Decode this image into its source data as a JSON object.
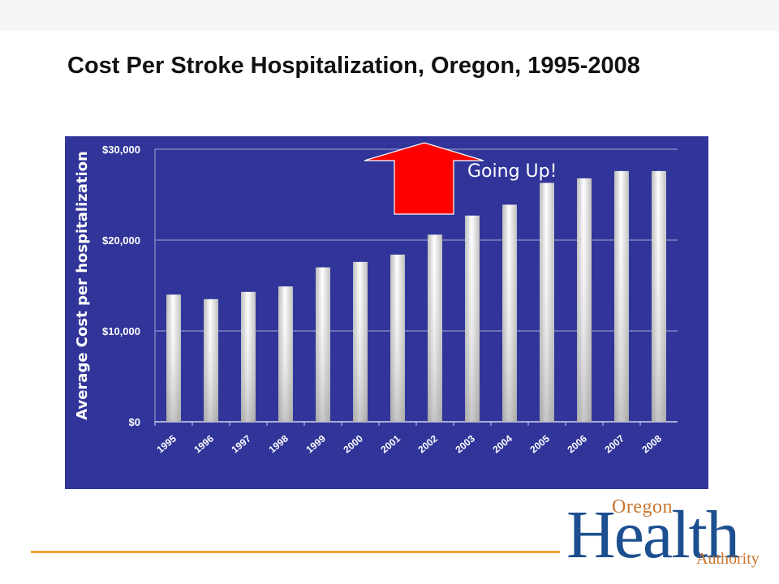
{
  "slide": {
    "title": "Cost Per Stroke Hospitalization, Oregon, 1995-2008"
  },
  "colors": {
    "panel": "#31359a",
    "gridline": "#8e92c8",
    "bar_light": "#ffffff",
    "bar_shade": "#bdbdbd",
    "arrow": "#ff0000",
    "annotation_text": "#ffffff",
    "footer_line": "#f0a23a",
    "logo_blue": "#1c4f8f",
    "logo_orange": "#c8742e"
  },
  "logo": {
    "line1": "Oregon",
    "line2": "Health",
    "line3": "Authority"
  },
  "chart_data": {
    "type": "bar",
    "title": "",
    "xlabel": "",
    "ylabel": "Average Cost per  hospitalization",
    "categories": [
      "1995",
      "1996",
      "1997",
      "1998",
      "1999",
      "2000",
      "2001",
      "2002",
      "2003",
      "2004",
      "2005",
      "2006",
      "2007",
      "2008"
    ],
    "values": [
      14000,
      13500,
      14300,
      14900,
      17000,
      17600,
      18400,
      20600,
      22700,
      23900,
      26300,
      26800,
      27600,
      27600
    ],
    "ylim": [
      0,
      30000
    ],
    "yticks": [
      0,
      10000,
      20000,
      30000
    ],
    "ytick_labels": [
      "$0",
      "$10,000",
      "$20,000",
      "$30,000"
    ],
    "grid": true,
    "legend": "none",
    "annotation": {
      "text": "Going Up!",
      "icon": "up-arrow-icon"
    }
  }
}
